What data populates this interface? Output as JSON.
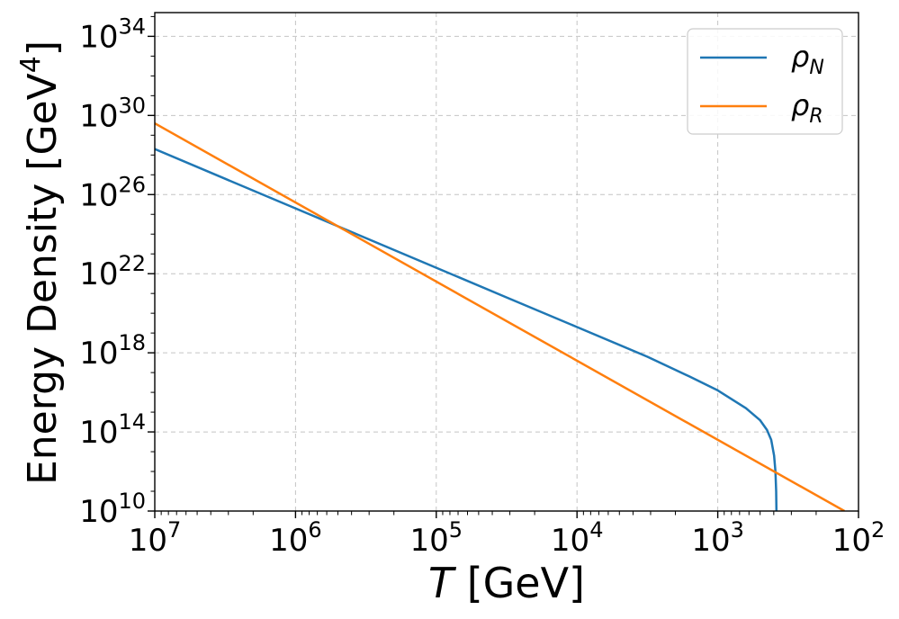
{
  "chart_data": {
    "type": "line",
    "title": "",
    "xlabel": {
      "italic": "T",
      "rest": " [GeV]"
    },
    "ylabel": {
      "main": "Energy Density [GeV",
      "sup": "4",
      "end": "]"
    },
    "x_scale": "log",
    "y_scale": "log",
    "x_inverted": true,
    "xlim_log10": [
      7,
      2
    ],
    "ylim_log10": [
      10,
      35.2
    ],
    "x_ticks": [
      {
        "base": "10",
        "exp": "7",
        "log": 7
      },
      {
        "base": "10",
        "exp": "6",
        "log": 6
      },
      {
        "base": "10",
        "exp": "5",
        "log": 5
      },
      {
        "base": "10",
        "exp": "4",
        "log": 4
      },
      {
        "base": "10",
        "exp": "3",
        "log": 3
      },
      {
        "base": "10",
        "exp": "2",
        "log": 2
      }
    ],
    "y_ticks": [
      {
        "base": "10",
        "exp": "10",
        "log": 10
      },
      {
        "base": "10",
        "exp": "14",
        "log": 14
      },
      {
        "base": "10",
        "exp": "18",
        "log": 18
      },
      {
        "base": "10",
        "exp": "22",
        "log": 22
      },
      {
        "base": "10",
        "exp": "26",
        "log": 26
      },
      {
        "base": "10",
        "exp": "30",
        "log": 30
      },
      {
        "base": "10",
        "exp": "34",
        "log": 34
      }
    ],
    "grid": true,
    "legend_position": "top-right",
    "series": [
      {
        "name": "rho_N",
        "legend_symbol": "ρ",
        "legend_sub": "N",
        "color": "#1f77b4",
        "points_log10": [
          [
            7.0,
            28.3
          ],
          [
            6.5,
            26.8
          ],
          [
            6.0,
            25.3
          ],
          [
            5.5,
            23.8
          ],
          [
            5.0,
            22.3
          ],
          [
            4.5,
            20.8
          ],
          [
            4.0,
            19.3
          ],
          [
            3.5,
            17.8
          ],
          [
            3.2,
            16.8
          ],
          [
            3.0,
            16.1
          ],
          [
            2.8,
            15.2
          ],
          [
            2.7,
            14.6
          ],
          [
            2.65,
            14.1
          ],
          [
            2.62,
            13.6
          ],
          [
            2.6,
            12.8
          ],
          [
            2.59,
            12.0
          ],
          [
            2.585,
            11.0
          ],
          [
            2.583,
            10.0
          ]
        ]
      },
      {
        "name": "rho_R",
        "legend_symbol": "ρ",
        "legend_sub": "R",
        "color": "#ff7f0e",
        "points_log10": [
          [
            7.0,
            29.6
          ],
          [
            2.1,
            10.0
          ]
        ]
      }
    ]
  }
}
